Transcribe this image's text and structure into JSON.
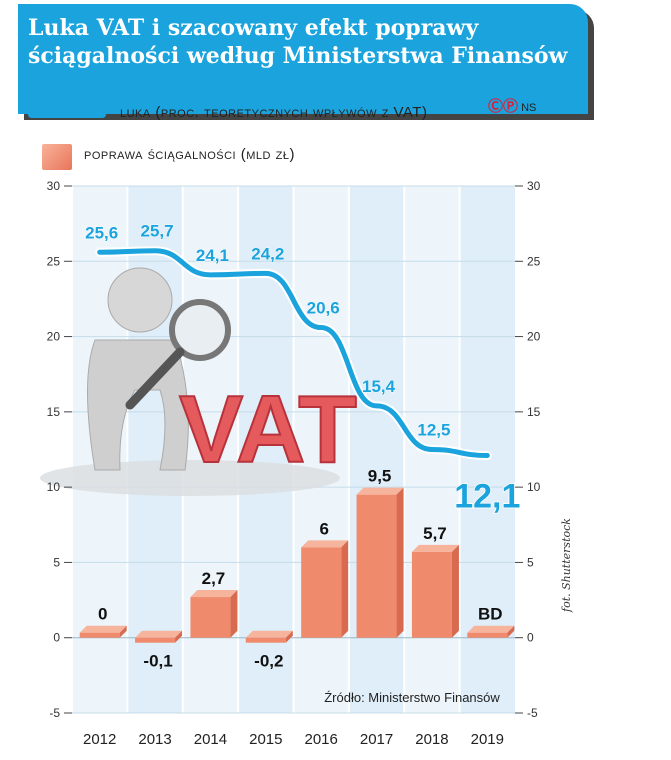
{
  "title": "Luka VAT i szacowany efekt poprawy ściągalności według Ministerstwa Finansów",
  "credit": {
    "logo_text": "ⒸⓅ",
    "author": "NS"
  },
  "photo_credit": "fot. Shutterstock",
  "source": "Źródło: Ministerstwo Finansów",
  "image_text": "VAT",
  "colors": {
    "line": "#1aa3dd",
    "bar": "#f08a6c",
    "title_bg": "#1aa3dd"
  },
  "chart_data": {
    "type": "bar+line",
    "categories": [
      "2012",
      "2013",
      "2014",
      "2015",
      "2016",
      "2017",
      "2018",
      "2019"
    ],
    "ylim": [
      -5,
      30
    ],
    "yticks": [
      "30",
      "25",
      "20",
      "15",
      "10",
      "5",
      "0",
      "-5"
    ],
    "grid": true,
    "series": [
      {
        "name": "luka (proc. teoretycznych wpływów z VAT)",
        "kind": "line",
        "values": [
          25.6,
          25.7,
          24.1,
          24.2,
          20.6,
          15.4,
          12.5,
          12.1
        ],
        "labels": [
          "25,6",
          "25,7",
          "24,1",
          "24,2",
          "20,6",
          "15,4",
          "12,5",
          "12,1"
        ]
      },
      {
        "name": "poprawa ściągalności (mld zł)",
        "kind": "bar",
        "values": [
          0,
          -0.1,
          2.7,
          -0.2,
          6,
          9.5,
          5.7,
          null
        ],
        "labels": [
          "0",
          "-0,1",
          "2,7",
          "-0,2",
          "6",
          "9,5",
          "5,7",
          "BD"
        ]
      }
    ]
  }
}
